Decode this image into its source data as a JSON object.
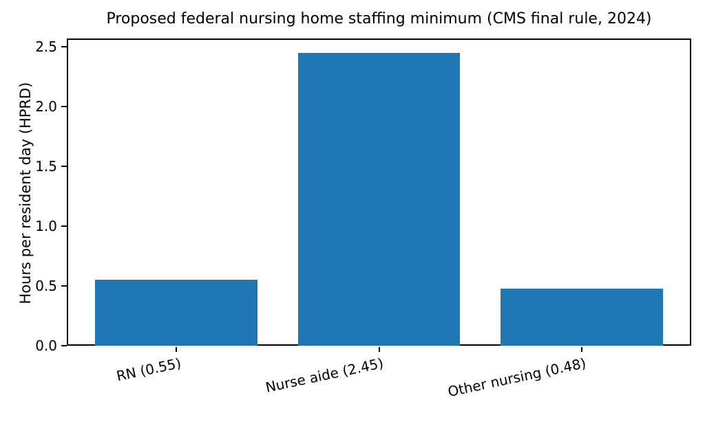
{
  "chart_data": {
    "type": "bar",
    "title": "Proposed federal nursing home staffing minimum (CMS final rule, 2024)",
    "categories": [
      "RN (0.55)",
      "Nurse aide (2.45)",
      "Other nursing (0.48)"
    ],
    "values": [
      0.55,
      2.45,
      0.48
    ],
    "xlabel": "",
    "ylabel": "Hours per resident day (HPRD)",
    "yticks": [
      0,
      0.5,
      1,
      1.5,
      2,
      2.5
    ],
    "ytick_labels": [
      "0.0",
      "0.5",
      "1.0",
      "1.5",
      "2.0",
      "2.5"
    ],
    "ylim": [
      0,
      2.57
    ],
    "xlim": [
      -0.54,
      2.54
    ],
    "bar_width_units": 0.8,
    "bar_color": "#1f77b4",
    "axis_color": "#000000",
    "text_color": "#000000",
    "background_color": "#ffffff",
    "grid": false,
    "legend": null,
    "xtick_rotation_deg": 12
  }
}
